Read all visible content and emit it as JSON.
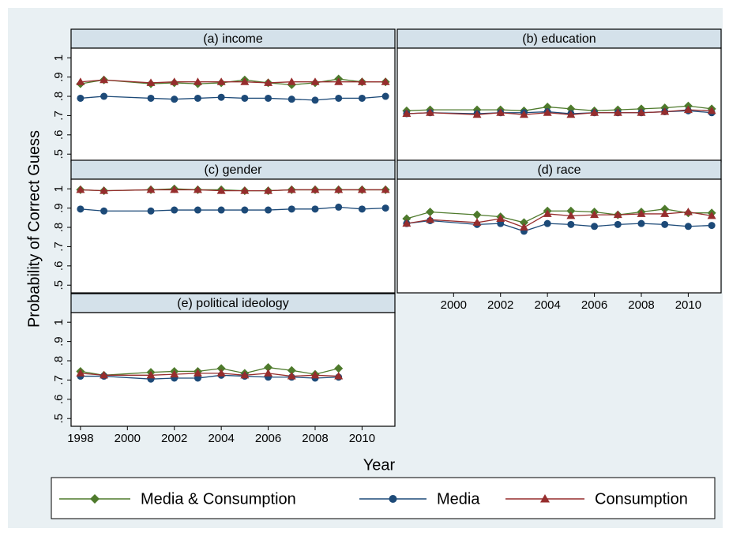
{
  "y_label": "Probability of Correct Guess",
  "x_label": "Year",
  "chart_data": [
    {
      "type": "line",
      "title": "(a) income",
      "x": [
        1998,
        1999,
        2001,
        2002,
        2003,
        2004,
        2005,
        2006,
        2007,
        2008,
        2009,
        2010,
        2011
      ],
      "xlim": [
        1997.6,
        2011.4
      ],
      "ylim": [
        0.46,
        1.05
      ],
      "yticks": [
        {
          "value": 0.5,
          "label": ".5"
        },
        {
          "value": 0.6,
          "label": ".6"
        },
        {
          "value": 0.7,
          "label": ".7"
        },
        {
          "value": 0.8,
          "label": ".8"
        },
        {
          "value": 0.9,
          "label": ".9"
        },
        1
      ],
      "series": [
        {
          "name": "Media & Consumption",
          "color": "#4e7a2c",
          "marker": "diamond",
          "values": [
            0.865,
            0.885,
            0.865,
            0.87,
            0.865,
            0.87,
            0.885,
            0.87,
            0.86,
            0.87,
            0.89,
            0.875,
            0.875
          ]
        },
        {
          "name": "Media",
          "color": "#1d4a78",
          "marker": "circle",
          "values": [
            0.79,
            0.8,
            0.79,
            0.785,
            0.79,
            0.795,
            0.79,
            0.79,
            0.785,
            0.78,
            0.79,
            0.79,
            0.8
          ]
        },
        {
          "name": "Consumption",
          "color": "#962d2d",
          "marker": "triangle",
          "values": [
            0.875,
            0.885,
            0.87,
            0.875,
            0.875,
            0.875,
            0.875,
            0.87,
            0.875,
            0.875,
            0.875,
            0.875,
            0.875
          ]
        }
      ]
    },
    {
      "type": "line",
      "title": "(b) education",
      "x": [
        1998,
        1999,
        2001,
        2002,
        2003,
        2004,
        2005,
        2006,
        2007,
        2008,
        2009,
        2010,
        2011
      ],
      "xlim": [
        1997.6,
        2011.4
      ],
      "ylim": [
        0.46,
        1.05
      ],
      "series": [
        {
          "name": "Media & Consumption",
          "color": "#4e7a2c",
          "marker": "diamond",
          "values": [
            0.725,
            0.73,
            0.73,
            0.73,
            0.725,
            0.745,
            0.735,
            0.725,
            0.73,
            0.735,
            0.74,
            0.75,
            0.735
          ]
        },
        {
          "name": "Media",
          "color": "#1d4a78",
          "marker": "circle",
          "values": [
            0.71,
            0.715,
            0.71,
            0.715,
            0.715,
            0.72,
            0.71,
            0.715,
            0.715,
            0.715,
            0.72,
            0.725,
            0.715
          ]
        },
        {
          "name": "Consumption",
          "color": "#962d2d",
          "marker": "triangle",
          "values": [
            0.71,
            0.715,
            0.705,
            0.715,
            0.705,
            0.715,
            0.705,
            0.715,
            0.715,
            0.715,
            0.72,
            0.73,
            0.725
          ]
        }
      ]
    },
    {
      "type": "line",
      "title": "(c) gender",
      "x": [
        1998,
        1999,
        2001,
        2002,
        2003,
        2004,
        2005,
        2006,
        2007,
        2008,
        2009,
        2010,
        2011
      ],
      "xlim": [
        1997.6,
        2011.4
      ],
      "ylim": [
        0.46,
        1.05
      ],
      "yticks": [
        {
          "value": 0.5,
          "label": ".5"
        },
        {
          "value": 0.6,
          "label": ".6"
        },
        {
          "value": 0.7,
          "label": ".7"
        },
        {
          "value": 0.8,
          "label": ".8"
        },
        {
          "value": 0.9,
          "label": ".9"
        },
        1
      ],
      "series": [
        {
          "name": "Media & Consumption",
          "color": "#4e7a2c",
          "marker": "diamond",
          "values": [
            0.995,
            0.99,
            0.995,
            1.0,
            0.995,
            0.995,
            0.99,
            0.99,
            0.995,
            0.995,
            0.995,
            0.995,
            0.995
          ]
        },
        {
          "name": "Media",
          "color": "#1d4a78",
          "marker": "circle",
          "values": [
            0.895,
            0.885,
            0.885,
            0.89,
            0.89,
            0.89,
            0.89,
            0.89,
            0.895,
            0.895,
            0.905,
            0.895,
            0.9
          ]
        },
        {
          "name": "Consumption",
          "color": "#962d2d",
          "marker": "triangle",
          "values": [
            0.995,
            0.99,
            0.995,
            0.995,
            0.995,
            0.99,
            0.99,
            0.99,
            0.995,
            0.995,
            0.995,
            0.995,
            0.995
          ]
        }
      ]
    },
    {
      "type": "line",
      "title": "(d) race",
      "x": [
        1998,
        1999,
        2001,
        2002,
        2003,
        2004,
        2005,
        2006,
        2007,
        2008,
        2009,
        2010,
        2011
      ],
      "xlim": [
        1997.6,
        2011.4
      ],
      "ylim": [
        0.46,
        1.05
      ],
      "xticks": [
        2000,
        2002,
        2004,
        2006,
        2008,
        2010
      ],
      "series": [
        {
          "name": "Media & Consumption",
          "color": "#4e7a2c",
          "marker": "diamond",
          "values": [
            0.845,
            0.88,
            0.865,
            0.855,
            0.825,
            0.885,
            0.885,
            0.88,
            0.865,
            0.88,
            0.895,
            0.875,
            0.875
          ]
        },
        {
          "name": "Media",
          "color": "#1d4a78",
          "marker": "circle",
          "values": [
            0.82,
            0.835,
            0.815,
            0.82,
            0.78,
            0.82,
            0.815,
            0.805,
            0.815,
            0.82,
            0.815,
            0.805,
            0.81
          ]
        },
        {
          "name": "Consumption",
          "color": "#962d2d",
          "marker": "triangle",
          "values": [
            0.82,
            0.84,
            0.825,
            0.845,
            0.8,
            0.87,
            0.86,
            0.865,
            0.865,
            0.87,
            0.87,
            0.88,
            0.86
          ]
        }
      ]
    },
    {
      "type": "line",
      "title": "(e) political ideology",
      "x": [
        1998,
        1999,
        2001,
        2002,
        2003,
        2004,
        2005,
        2006,
        2007,
        2008,
        2009
      ],
      "xlim": [
        1997.6,
        2011.4
      ],
      "ylim": [
        0.46,
        1.05
      ],
      "xticks": [
        1998,
        2000,
        2002,
        2004,
        2006,
        2008,
        2010
      ],
      "yticks": [
        {
          "value": 0.5,
          "label": ".5"
        },
        {
          "value": 0.6,
          "label": ".6"
        },
        {
          "value": 0.7,
          "label": ".7"
        },
        {
          "value": 0.8,
          "label": ".8"
        },
        {
          "value": 0.9,
          "label": ".9"
        },
        1
      ],
      "series": [
        {
          "name": "Media & Consumption",
          "color": "#4e7a2c",
          "marker": "diamond",
          "values": [
            0.745,
            0.725,
            0.74,
            0.745,
            0.745,
            0.76,
            0.735,
            0.765,
            0.75,
            0.73,
            0.76
          ]
        },
        {
          "name": "Media",
          "color": "#1d4a78",
          "marker": "circle",
          "values": [
            0.72,
            0.72,
            0.705,
            0.71,
            0.71,
            0.725,
            0.72,
            0.715,
            0.715,
            0.71,
            0.715
          ]
        },
        {
          "name": "Consumption",
          "color": "#962d2d",
          "marker": "triangle",
          "values": [
            0.735,
            0.725,
            0.725,
            0.73,
            0.735,
            0.735,
            0.725,
            0.735,
            0.72,
            0.725,
            0.72
          ]
        }
      ]
    }
  ]
}
